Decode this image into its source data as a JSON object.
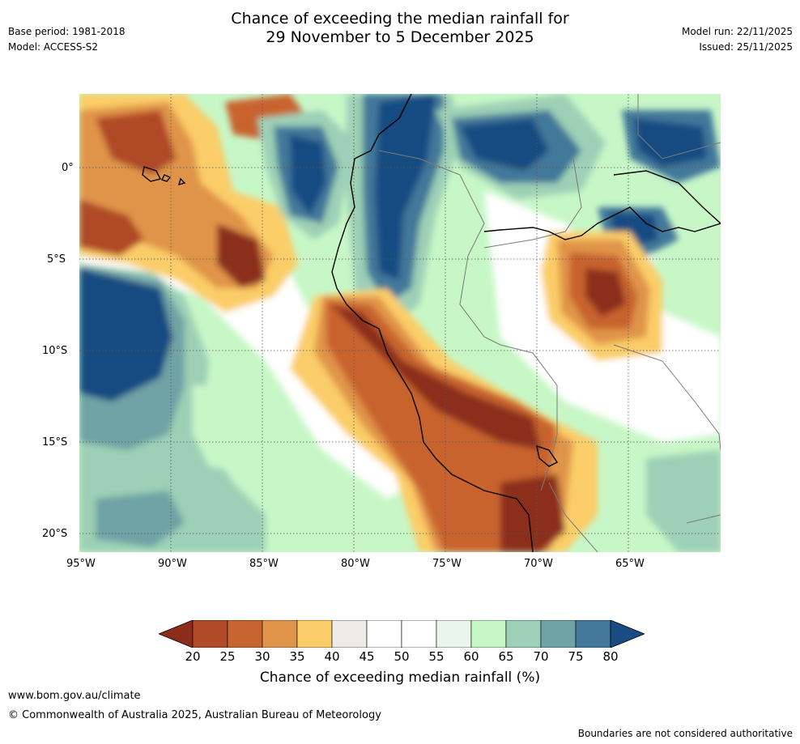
{
  "header": {
    "title_line1": "Chance of exceeding the median rainfall for",
    "title_line2": "29 November to 5 December 2025",
    "base_period": "Base period: 1981-2018",
    "model": "Model: ACCESS-S2",
    "model_run": "Model run: 22/11/2025",
    "issued": "Issued: 25/11/2025"
  },
  "axes": {
    "x_ticks": [
      "95°W",
      "90°W",
      "85°W",
      "80°W",
      "75°W",
      "70°W",
      "65°W"
    ],
    "y_ticks": [
      "0°",
      "5°S",
      "10°S",
      "15°S",
      "20°S"
    ]
  },
  "legend": {
    "ticks": [
      "20",
      "25",
      "30",
      "35",
      "40",
      "45",
      "50",
      "55",
      "60",
      "65",
      "70",
      "75",
      "80"
    ],
    "title": "Chance of exceeding median rainfall (%)",
    "colors": [
      "#8c2d1b",
      "#b04a27",
      "#c8642f",
      "#e0944a",
      "#fbcd68",
      "#ecebe7",
      "#ffffff",
      "#ffffff",
      "#eaf6ea",
      "#c7f7c7",
      "#9dd0b6",
      "#70a3a5",
      "#43789a",
      "#194c82"
    ]
  },
  "footer": {
    "website": "www.bom.gov.au/climate",
    "copyright": "© Commonwealth of Australia 2025, Australian Bureau of Meteorology",
    "disclaimer": "Boundaries are not considered authoritative"
  }
}
